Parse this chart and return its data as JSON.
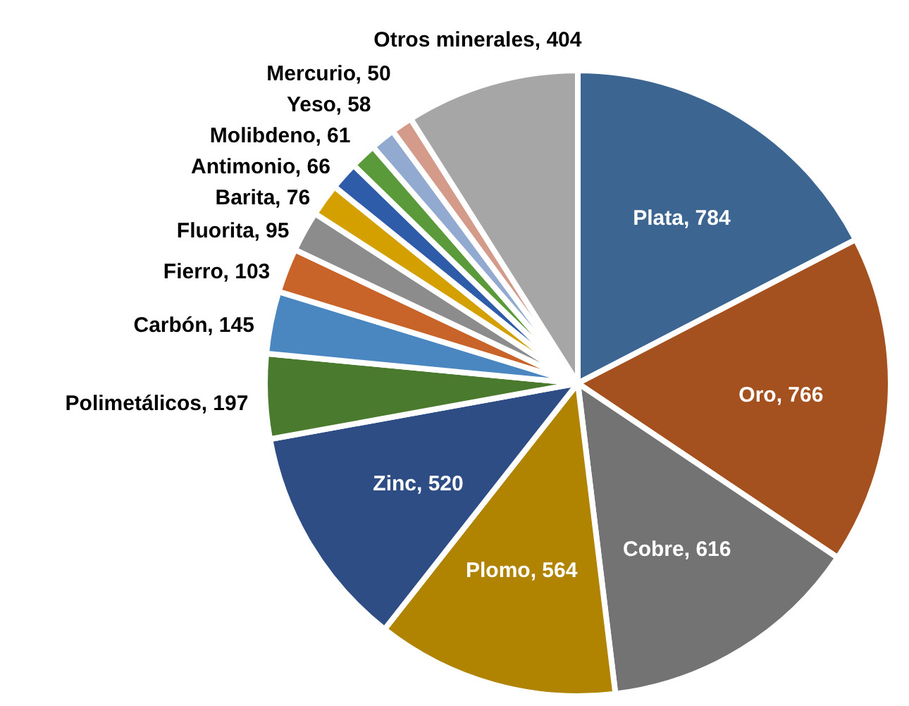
{
  "chart_data": {
    "type": "pie",
    "categories": [
      "Plata ",
      "Oro",
      "Cobre",
      "Plomo",
      "Zinc",
      "Polimetálicos",
      "Carbón",
      "Fierro",
      "Fluorita",
      "Barita",
      "Antimonio",
      "Molibdeno",
      "Yeso",
      "Mercurio",
      "Otros minerales"
    ],
    "values": [
      784,
      766,
      616,
      564,
      520,
      197,
      145,
      103,
      95,
      76,
      66,
      61,
      58,
      50,
      404
    ],
    "colors": [
      "#3c6591",
      "#a4511f",
      "#737373",
      "#b08400",
      "#2e4d84",
      "#4a7a2e",
      "#4a86c0",
      "#c8642a",
      "#8c8c8c",
      "#d4a000",
      "#2e5ca8",
      "#5a9a3a",
      "#92aad0",
      "#d49a8a",
      "#a6a6a6"
    ],
    "value_labels": [
      ", 784",
      ", 766",
      ", 616",
      ", 564",
      ", 520",
      ", 197",
      ", 145",
      ", 103",
      ", 95",
      ", 76",
      ", 66",
      ", 61",
      ", 58",
      ", 50",
      ", 404"
    ]
  }
}
